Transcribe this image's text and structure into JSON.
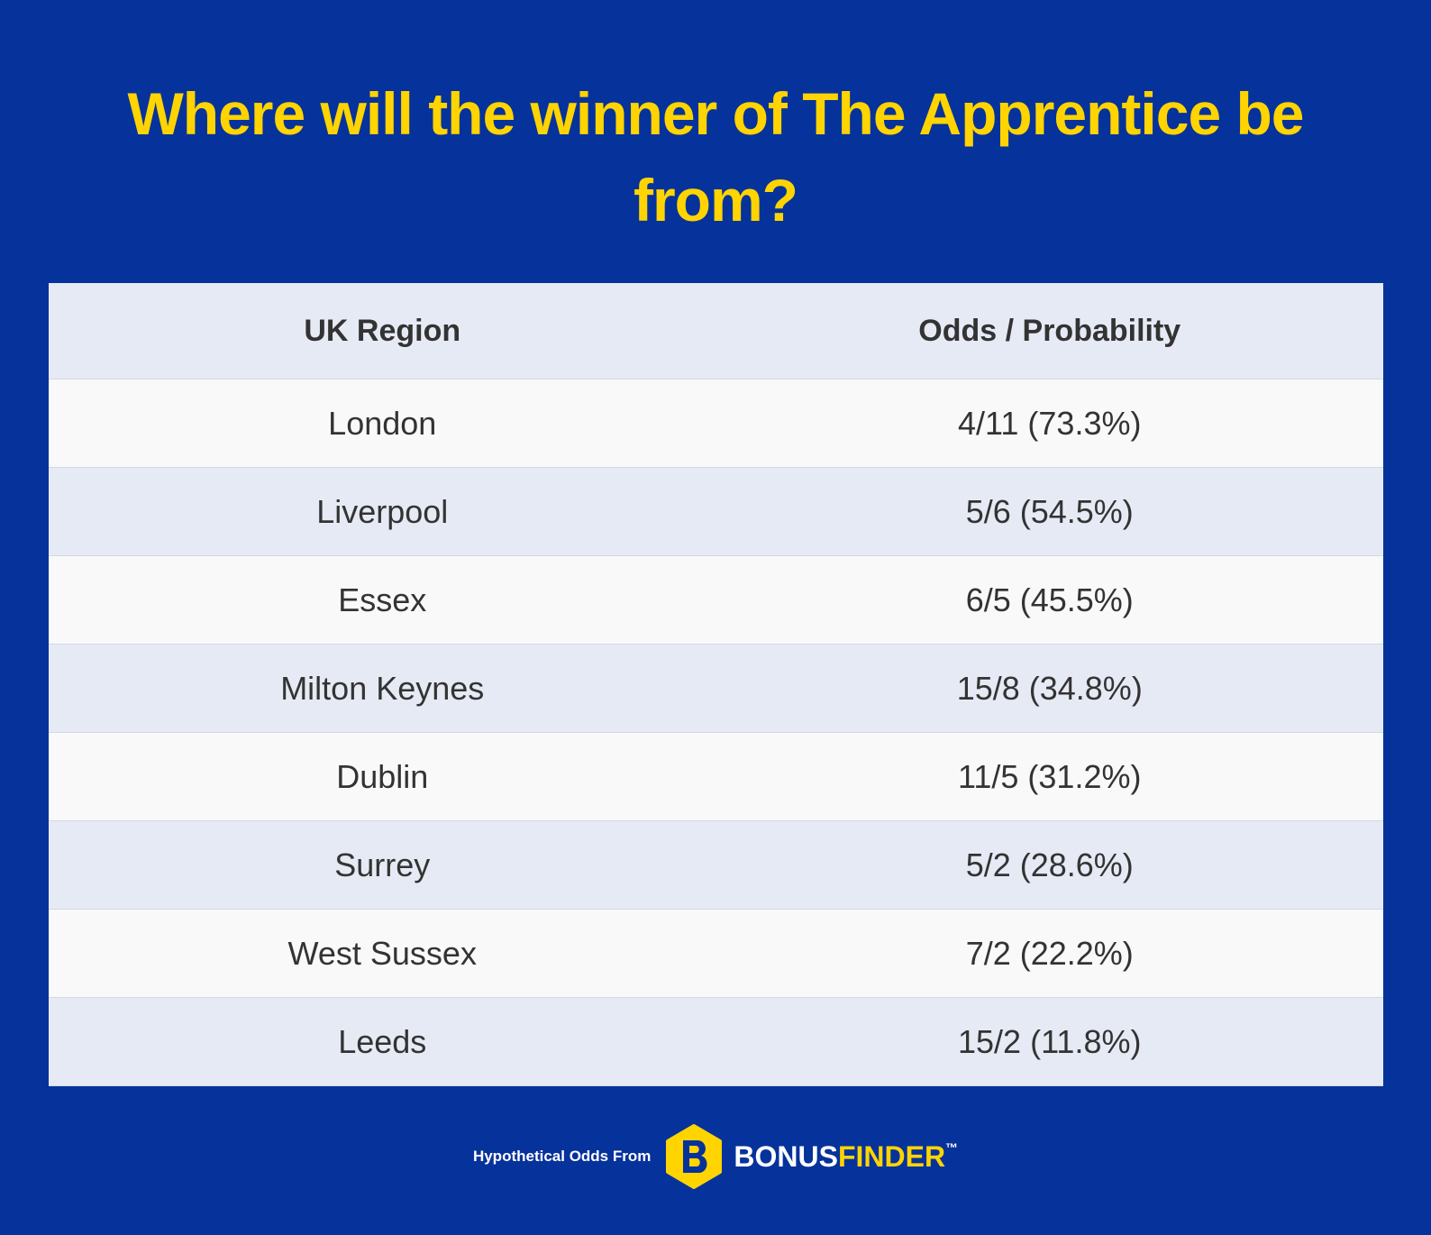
{
  "header": {
    "title": "Where will the winner of The Apprentice be from?"
  },
  "table": {
    "columns": [
      "UK Region",
      "Odds / Probability"
    ],
    "rows": [
      [
        "London",
        "4/11 (73.3%)"
      ],
      [
        "Liverpool",
        "5/6 (54.5%)"
      ],
      [
        "Essex",
        "6/5 (45.5%)"
      ],
      [
        "Milton Keynes",
        "15/8 (34.8%)"
      ],
      [
        "Dublin",
        "11/5 (31.2%)"
      ],
      [
        "Surrey",
        "5/2 (28.6%)"
      ],
      [
        "West Sussex",
        "7/2 (22.2%)"
      ],
      [
        "Leeds",
        "15/2 (11.8%)"
      ]
    ]
  },
  "footer": {
    "source": "Hypothetical Odds From",
    "logo": {
      "part1": "BONUS",
      "part2": "FINDER",
      "mark": "™"
    }
  }
}
